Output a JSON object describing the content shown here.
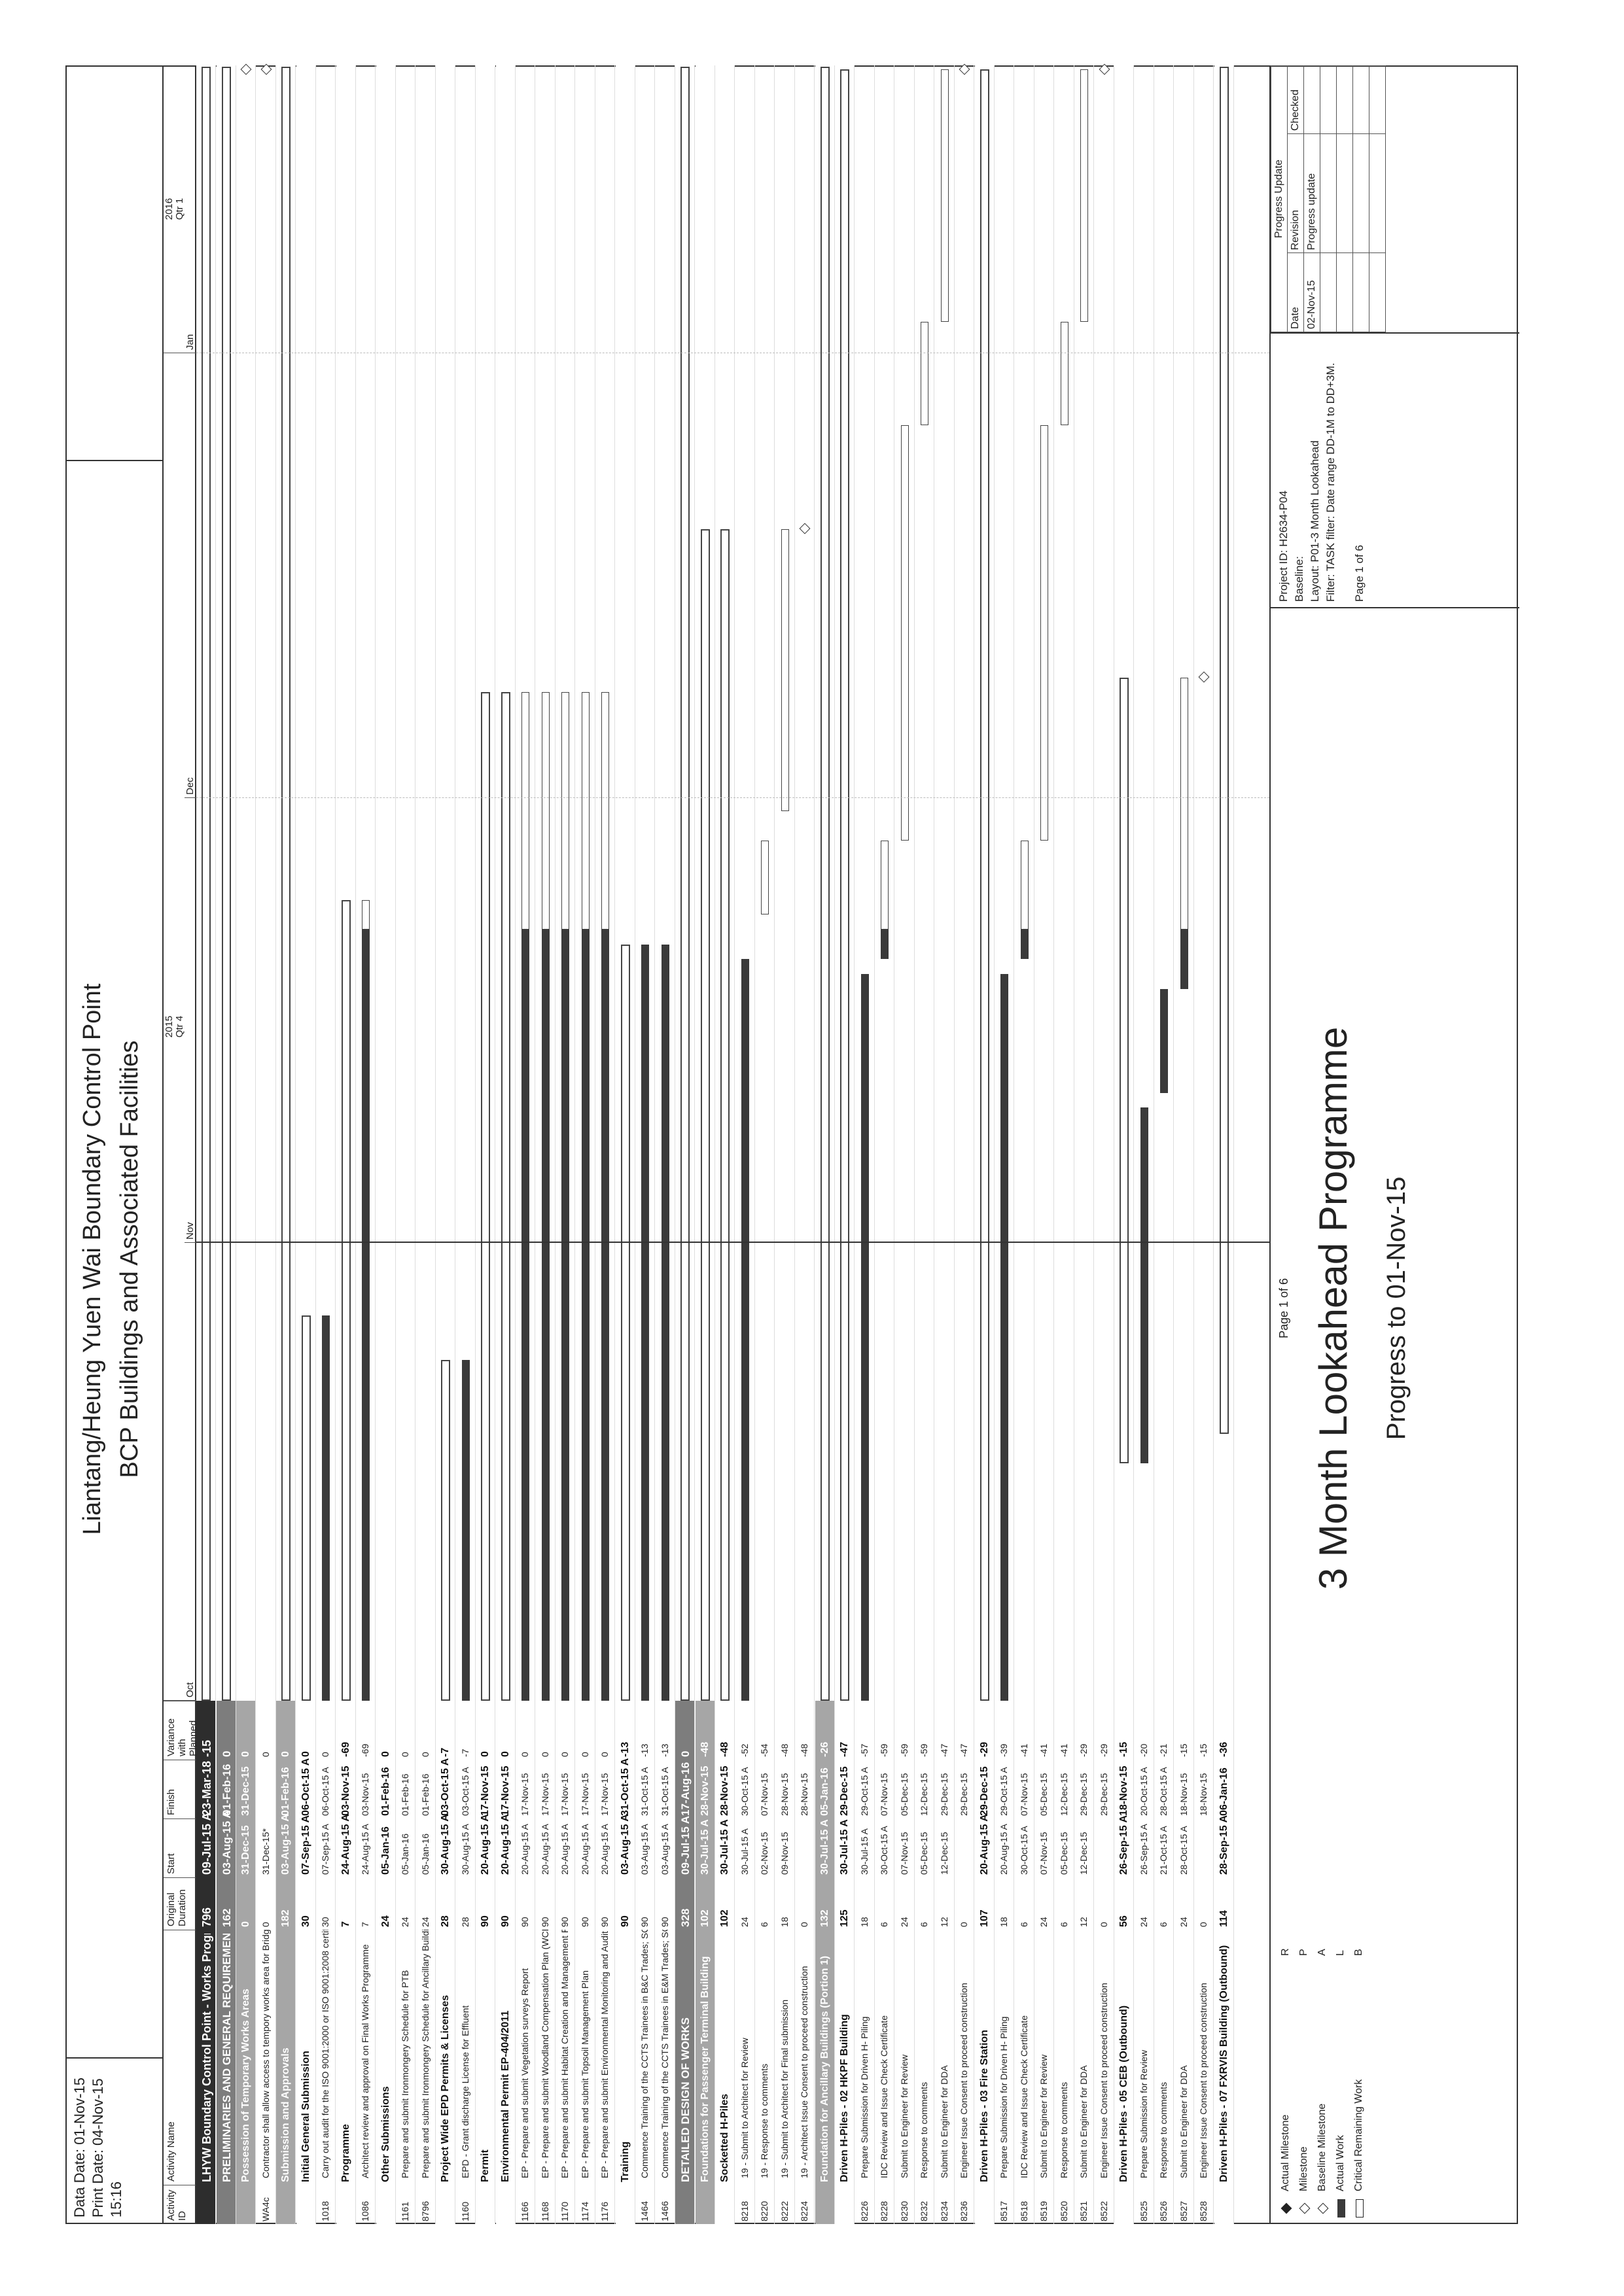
{
  "header": {
    "data_date": "Data Date: 01-Nov-15",
    "print_date": "Print Date: 04-Nov-15 15:16",
    "title": "Liantang/Heung Yuen Wai Boundary Control Point",
    "subtitle": "BCP Buildings and Associated Facilities"
  },
  "columns": {
    "id": "Activity ID",
    "name": "Activity Name",
    "duration": "Original Duration",
    "start": "Start",
    "finish": "Finish",
    "variance": "Variance with Planned"
  },
  "timescale": {
    "year_2015": "2015",
    "year_2016": "2016",
    "qtr_4": "Qtr 4",
    "qtr_1": "Qtr 1",
    "months": [
      "Oct",
      "Nov",
      "Dec",
      "Jan"
    ]
  },
  "rows": [
    {
      "level": "l0",
      "id": "",
      "name": "LHYW Boundary Control Point - Works Programme with",
      "dur": "796",
      "start": "09-Jul-15 A",
      "finish": "23-Mar-18",
      "var": "-15"
    },
    {
      "level": "l1",
      "id": "",
      "name": "PRELIMINARIES AND GENERAL REQUIREMENTS",
      "dur": "162",
      "start": "03-Aug-15 A",
      "finish": "01-Feb-16",
      "var": "0"
    },
    {
      "level": "l2",
      "id": "",
      "name": "Possession of Temporary Works Areas",
      "dur": "0",
      "start": "31-Dec-15",
      "finish": "31-Dec-15",
      "var": "0"
    },
    {
      "level": "",
      "id": "WA4c",
      "name": "Contractor shall allow access to tempory works area for Bridge A till end",
      "dur": "0",
      "start": "31-Dec-15*",
      "finish": "",
      "var": "0"
    },
    {
      "level": "l2",
      "id": "",
      "name": "Submission and Approvals",
      "dur": "182",
      "start": "03-Aug-15 A",
      "finish": "01-Feb-16",
      "var": "0"
    },
    {
      "level": "l3",
      "id": "",
      "name": "Initial General Submission",
      "dur": "30",
      "start": "07-Sep-15 A",
      "finish": "06-Oct-15 A",
      "var": "0"
    },
    {
      "level": "",
      "id": "1018",
      "name": "Carry out audit for the ISO 9001:2000 or ISO 9001:2008 certification; Si",
      "dur": "30",
      "start": "07-Sep-15 A",
      "finish": "06-Oct-15 A",
      "var": "0"
    },
    {
      "level": "l3",
      "id": "",
      "name": "Programme",
      "dur": "7",
      "start": "24-Aug-15 A",
      "finish": "03-Nov-15",
      "var": "-69"
    },
    {
      "level": "",
      "id": "1086",
      "name": "Architect review and approval on Final Works Programme",
      "dur": "7",
      "start": "24-Aug-15 A",
      "finish": "03-Nov-15",
      "var": "-69"
    },
    {
      "level": "l3",
      "id": "",
      "name": "Other Submissions",
      "dur": "24",
      "start": "05-Jan-16",
      "finish": "01-Feb-16",
      "var": "0"
    },
    {
      "level": "",
      "id": "1161",
      "name": "Prepare and submit Ironmongery Schedule for PTB",
      "dur": "24",
      "start": "05-Jan-16",
      "finish": "01-Feb-16",
      "var": "0"
    },
    {
      "level": "",
      "id": "8796",
      "name": "Prepare and submit Ironmongery Schedule for Ancillary Buildings",
      "dur": "24",
      "start": "05-Jan-16",
      "finish": "01-Feb-16",
      "var": "0"
    },
    {
      "level": "l3",
      "id": "",
      "name": "Project Wide EPD Permits & Licenses",
      "dur": "28",
      "start": "30-Aug-15 A",
      "finish": "03-Oct-15 A",
      "var": "-7"
    },
    {
      "level": "",
      "id": "1160",
      "name": "EPD - Grant discharge License for Effluent",
      "dur": "28",
      "start": "30-Aug-15 A",
      "finish": "03-Oct-15 A",
      "var": "-7"
    },
    {
      "level": "l3",
      "id": "",
      "name": "Permit",
      "dur": "90",
      "start": "20-Aug-15 A",
      "finish": "17-Nov-15",
      "var": "0"
    },
    {
      "level": "l3",
      "id": "",
      "name": "Environmental Permit EP-404/2011",
      "dur": "90",
      "start": "20-Aug-15 A",
      "finish": "17-Nov-15",
      "var": "0"
    },
    {
      "level": "",
      "id": "1166",
      "name": "EP - Prepare and submit Vegetation surveys Report",
      "dur": "90",
      "start": "20-Aug-15 A",
      "finish": "17-Nov-15",
      "var": "0"
    },
    {
      "level": "",
      "id": "1168",
      "name": "EP - Prepare and submit Woodland Compensation Plan (WCP)",
      "dur": "90",
      "start": "20-Aug-15 A",
      "finish": "17-Nov-15",
      "var": "0"
    },
    {
      "level": "",
      "id": "1170",
      "name": "EP - Prepare and submit Habitat Creation and Management Plan (HCMP)",
      "dur": "90",
      "start": "20-Aug-15 A",
      "finish": "17-Nov-15",
      "var": "0"
    },
    {
      "level": "",
      "id": "1174",
      "name": "EP - Prepare and submit Topsoil Management Plan",
      "dur": "90",
      "start": "20-Aug-15 A",
      "finish": "17-Nov-15",
      "var": "0"
    },
    {
      "level": "",
      "id": "1176",
      "name": "EP - Prepare and submit Environmental Monitoring and Audit (EM&A) Prc",
      "dur": "90",
      "start": "20-Aug-15 A",
      "finish": "17-Nov-15",
      "var": "0"
    },
    {
      "level": "l3",
      "id": "",
      "name": "Training",
      "dur": "90",
      "start": "03-Aug-15 A",
      "finish": "31-Oct-15 A",
      "var": "-13"
    },
    {
      "level": "",
      "id": "1464",
      "name": "Commence Training of the CCTS Trainees in B&C Trades; SCC109",
      "dur": "90",
      "start": "03-Aug-15 A",
      "finish": "31-Oct-15 A",
      "var": "-13"
    },
    {
      "level": "",
      "id": "1466",
      "name": "Commence Training of the CCTS Trainees in E&M Trades; SCC109",
      "dur": "90",
      "start": "03-Aug-15 A",
      "finish": "31-Oct-15 A",
      "var": "-13"
    },
    {
      "level": "l1",
      "id": "",
      "name": "DETAILED DESIGN OF WORKS",
      "dur": "328",
      "start": "09-Jul-15 A",
      "finish": "17-Aug-16",
      "var": "0"
    },
    {
      "level": "l2",
      "id": "",
      "name": "Foundations for Passenger Terminal Building",
      "dur": "102",
      "start": "30-Jul-15 A",
      "finish": "28-Nov-15",
      "var": "-48"
    },
    {
      "level": "l3",
      "id": "",
      "name": "Socketted H-Piles",
      "dur": "102",
      "start": "30-Jul-15 A",
      "finish": "28-Nov-15",
      "var": "-48"
    },
    {
      "level": "",
      "id": "8218",
      "name": "19 - Submit to Architect for Review",
      "dur": "24",
      "start": "30-Jul-15 A",
      "finish": "30-Oct-15 A",
      "var": "-52"
    },
    {
      "level": "",
      "id": "8220",
      "name": "19 - Response to comments",
      "dur": "6",
      "start": "02-Nov-15",
      "finish": "07-Nov-15",
      "var": "-54"
    },
    {
      "level": "",
      "id": "8222",
      "name": "19 - Submit to Architect for Final submission",
      "dur": "18",
      "start": "09-Nov-15",
      "finish": "28-Nov-15",
      "var": "-48"
    },
    {
      "level": "",
      "id": "8224",
      "name": "19 - Architect Issue Consent to proceed construction",
      "dur": "0",
      "start": "",
      "finish": "28-Nov-15",
      "var": "-48"
    },
    {
      "level": "l2",
      "id": "",
      "name": "Foundation for Ancillary Buildings (Portion 1)",
      "dur": "132",
      "start": "30-Jul-15 A",
      "finish": "05-Jan-16",
      "var": "-26"
    },
    {
      "level": "l3",
      "id": "",
      "name": "Driven H-Piles - 02 HKPF Building",
      "dur": "125",
      "start": "30-Jul-15 A",
      "finish": "29-Dec-15",
      "var": "-47"
    },
    {
      "level": "",
      "id": "8226",
      "name": "Prepare Submission for Driven H- Piling",
      "dur": "18",
      "start": "30-Jul-15 A",
      "finish": "29-Oct-15 A",
      "var": "-57"
    },
    {
      "level": "",
      "id": "8228",
      "name": "IDC Review and Issue Check Certificate",
      "dur": "6",
      "start": "30-Oct-15 A",
      "finish": "07-Nov-15",
      "var": "-59"
    },
    {
      "level": "",
      "id": "8230",
      "name": "Submit to Engineer for Review",
      "dur": "24",
      "start": "07-Nov-15",
      "finish": "05-Dec-15",
      "var": "-59"
    },
    {
      "level": "",
      "id": "8232",
      "name": "Response to comments",
      "dur": "6",
      "start": "05-Dec-15",
      "finish": "12-Dec-15",
      "var": "-59"
    },
    {
      "level": "",
      "id": "8234",
      "name": "Submit to Engineer for DDA",
      "dur": "12",
      "start": "12-Dec-15",
      "finish": "29-Dec-15",
      "var": "-47"
    },
    {
      "level": "",
      "id": "8236",
      "name": "Engineer Issue Consent to proceed construction",
      "dur": "0",
      "start": "",
      "finish": "29-Dec-15",
      "var": "-47"
    },
    {
      "level": "l3",
      "id": "",
      "name": "Driven H-Piles - 03 Fire Station",
      "dur": "107",
      "start": "20-Aug-15 A",
      "finish": "29-Dec-15",
      "var": "-29"
    },
    {
      "level": "",
      "id": "8517",
      "name": "Prepare Submission for Driven H- Piling",
      "dur": "18",
      "start": "20-Aug-15 A",
      "finish": "29-Oct-15 A",
      "var": "-39"
    },
    {
      "level": "",
      "id": "8518",
      "name": "IDC Review and Issue Check Certificate",
      "dur": "6",
      "start": "30-Oct-15 A",
      "finish": "07-Nov-15",
      "var": "-41"
    },
    {
      "level": "",
      "id": "8519",
      "name": "Submit to Engineer for Review",
      "dur": "24",
      "start": "07-Nov-15",
      "finish": "05-Dec-15",
      "var": "-41"
    },
    {
      "level": "",
      "id": "8520",
      "name": "Response to comments",
      "dur": "6",
      "start": "05-Dec-15",
      "finish": "12-Dec-15",
      "var": "-41"
    },
    {
      "level": "",
      "id": "8521",
      "name": "Submit to Engineer for DDA",
      "dur": "12",
      "start": "12-Dec-15",
      "finish": "29-Dec-15",
      "var": "-29"
    },
    {
      "level": "",
      "id": "8522",
      "name": "Engineer Issue Consent to proceed construction",
      "dur": "0",
      "start": "",
      "finish": "29-Dec-15",
      "var": "-29"
    },
    {
      "level": "l3",
      "id": "",
      "name": "Driven H-Piles - 05 CEB (Outbound)",
      "dur": "56",
      "start": "26-Sep-15 A",
      "finish": "18-Nov-15",
      "var": "-15"
    },
    {
      "level": "",
      "id": "8525",
      "name": "Prepare Submission for Review",
      "dur": "24",
      "start": "26-Sep-15 A",
      "finish": "20-Oct-15 A",
      "var": "-20"
    },
    {
      "level": "",
      "id": "8526",
      "name": "Response to comments",
      "dur": "6",
      "start": "21-Oct-15 A",
      "finish": "28-Oct-15 A",
      "var": "-21"
    },
    {
      "level": "",
      "id": "8527",
      "name": "Submit to Engineer for DDA",
      "dur": "24",
      "start": "28-Oct-15 A",
      "finish": "18-Nov-15",
      "var": "-15"
    },
    {
      "level": "",
      "id": "8528",
      "name": "Engineer Issue Consent to proceed construction",
      "dur": "0",
      "start": "",
      "finish": "18-Nov-15",
      "var": "-15"
    },
    {
      "level": "l3",
      "id": "",
      "name": "Driven H-Piles - 07 FXRVIS Building (Outbound)",
      "dur": "114",
      "start": "28-Sep-15 A",
      "finish": "06-Jan-16",
      "var": "-36"
    }
  ],
  "legend": [
    {
      "label": "Actual Milestone",
      "code": "R",
      "icon": "filled-diamond"
    },
    {
      "label": "Milestone",
      "code": "P",
      "icon": "open-diamond"
    },
    {
      "label": "Baseline Milestone",
      "code": "A",
      "icon": "open-diamond"
    },
    {
      "label": "Actual Work",
      "code": "L",
      "icon": "dark-bar"
    },
    {
      "label": "Critical Remaining Work",
      "code": "B",
      "icon": "open-bar"
    }
  ],
  "footer": {
    "page": "Page 1 of 6",
    "title": "3 Month Lookahead Programme",
    "progress": "Progress to 01-Nov-15",
    "project_id": "Project ID: H2634-P04",
    "baseline": "Baseline:",
    "layout": "Layout: P01-3 Month Lookahead",
    "filter": "Filter: TASK filter: Date range DD-1M to DD+3M.",
    "page_small": "Page 1 of 6"
  },
  "revision": {
    "heading": "Progress Update",
    "col_date": "Date",
    "col_revision": "Revision",
    "col_checked": "Checked",
    "date": "02-Nov-15",
    "revision": "Progress update"
  }
}
